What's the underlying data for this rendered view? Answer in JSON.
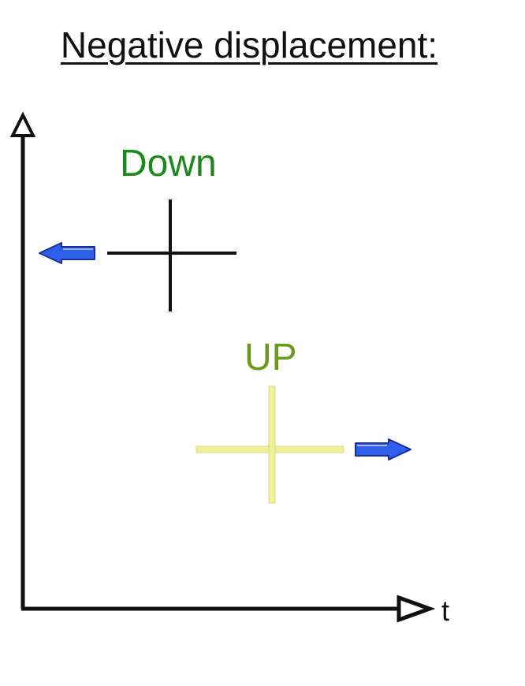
{
  "title": "Negative displacement:",
  "labels": {
    "down": "Down",
    "up": "UP",
    "time_axis": "t"
  },
  "colors": {
    "down": "#1a8a1a",
    "up": "#6a9a1a",
    "down_cross": "#111111",
    "up_cross": "#f1f09a",
    "arrow_fill": "#2f5fe8",
    "axis": "#111111"
  }
}
